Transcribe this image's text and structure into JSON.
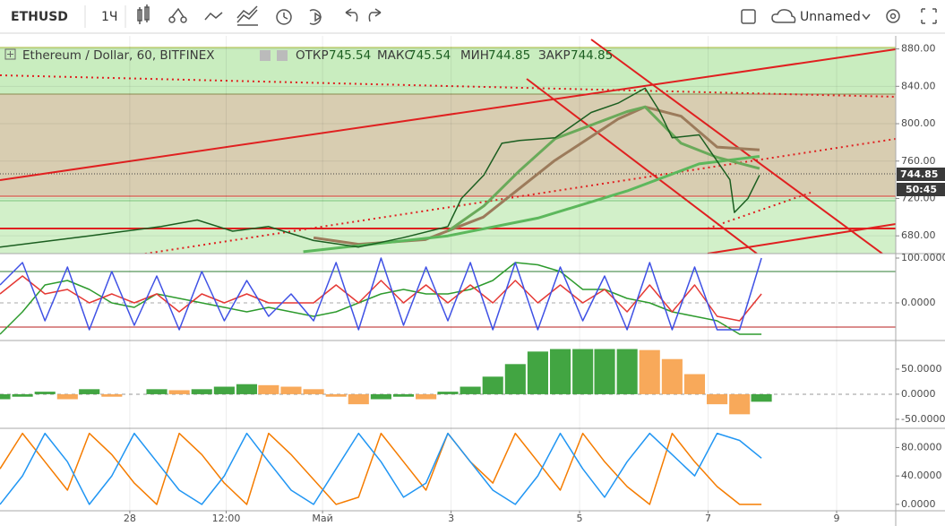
{
  "toolbar": {
    "symbol": "ETHUSD",
    "interval": "1Ч",
    "layout_name": "Unnamed"
  },
  "legend": {
    "title": "Ethereum / Dollar, 60, BITFINEX",
    "items": [
      {
        "label": "ОТКР",
        "value": "745.54"
      },
      {
        "label": "МАКС",
        "value": "745.54"
      },
      {
        "label": "МИН",
        "value": "744.85"
      },
      {
        "label": "ЗАКР",
        "value": "744.85"
      }
    ]
  },
  "price_tag": "744.85",
  "countdown": "50:45",
  "chart_data": [
    {
      "type": "line",
      "grid": true,
      "xlim": [
        25.98,
        39.92
      ],
      "xticks": [
        {
          "value": 28,
          "label": "28"
        },
        {
          "value": 29.5,
          "label": "12:00"
        },
        {
          "value": 31,
          "label": "Май"
        },
        {
          "value": 33,
          "label": "3"
        },
        {
          "value": 35,
          "label": "5"
        },
        {
          "value": 37,
          "label": "7"
        },
        {
          "value": 39,
          "label": "9"
        }
      ],
      "ylim": [
        661,
        894
      ],
      "yticks": [
        {
          "value": 680,
          "label": "680.00"
        },
        {
          "value": 720,
          "label": "720.00"
        },
        {
          "value": 760,
          "label": "760.00"
        },
        {
          "value": 800,
          "label": "800.00"
        },
        {
          "value": 840,
          "label": "840.00"
        },
        {
          "value": 880,
          "label": "880.00"
        }
      ],
      "series": [
        {
          "color": "#9c7b5b",
          "x": [
            30.86,
            31.56,
            32.6,
            33.5,
            34.6,
            35.6,
            36.02,
            36.58,
            37.14,
            37.8
          ],
          "values": [
            678,
            671,
            676,
            700,
            760,
            805,
            818,
            808,
            775,
            772
          ]
        },
        {
          "color": "#5cb85c",
          "x": [
            30.7,
            32.95,
            34.35,
            35.74,
            36.86,
            37.8
          ],
          "values": [
            663,
            680,
            699,
            728,
            757,
            765
          ]
        },
        {
          "color": "#6aaa5a",
          "x": [
            32.95,
            33.51,
            34.07,
            34.62,
            35.74,
            36.02,
            36.58,
            37.14,
            37.8
          ],
          "values": [
            685,
            712,
            750,
            784,
            813,
            818,
            779,
            764,
            752
          ]
        },
        {
          "color": "#1b5e20",
          "x": [
            25.98,
            27.37,
            28.49,
            29.05,
            29.6,
            30.16,
            30.86,
            31.56,
            32.25,
            32.95,
            33.16,
            33.51,
            33.79,
            34.07,
            34.62,
            35.18,
            35.6,
            36.02,
            36.23,
            36.44,
            36.86,
            37.14,
            37.34,
            37.41,
            37.62,
            37.8
          ],
          "values": [
            668,
            680,
            690,
            697,
            685,
            690,
            675,
            668,
            678,
            690,
            720,
            745,
            779,
            782,
            785,
            812,
            822,
            838,
            815,
            785,
            788,
            760,
            740,
            705,
            720,
            745
          ]
        }
      ]
    },
    {
      "type": "line",
      "xlim": [
        25.98,
        39.92
      ],
      "ylim": [
        -84,
        110
      ],
      "yticks": [
        {
          "value": 100,
          "label": "100.0000"
        },
        {
          "value": 0,
          "label": "0.0000"
        }
      ],
      "x": [
        25.98,
        26.33,
        26.68,
        27.03,
        27.37,
        27.72,
        28.07,
        28.42,
        28.77,
        29.12,
        29.47,
        29.82,
        30.16,
        30.51,
        30.86,
        31.21,
        31.56,
        31.91,
        32.26,
        32.61,
        32.95,
        33.3,
        33.65,
        34.0,
        34.35,
        34.7,
        35.05,
        35.39,
        35.74,
        36.09,
        36.44,
        36.79,
        37.14,
        37.49,
        37.83
      ],
      "series": [
        {
          "color": "#2e9b2e",
          "values": [
            -70,
            -20,
            40,
            50,
            30,
            0,
            -10,
            20,
            10,
            0,
            -10,
            -20,
            -10,
            -20,
            -30,
            -20,
            0,
            20,
            30,
            20,
            20,
            30,
            50,
            90,
            85,
            70,
            30,
            30,
            10,
            0,
            -20,
            -30,
            -40,
            -70,
            -70
          ]
        },
        {
          "color": "#e53935",
          "values": [
            20,
            60,
            20,
            30,
            0,
            20,
            0,
            20,
            -20,
            20,
            0,
            20,
            0,
            0,
            0,
            40,
            0,
            50,
            0,
            40,
            0,
            40,
            0,
            50,
            0,
            40,
            0,
            30,
            -20,
            40,
            -20,
            40,
            -30,
            -40,
            20
          ]
        },
        {
          "color": "#3f51e5",
          "values": [
            40,
            90,
            -40,
            80,
            -60,
            70,
            -50,
            60,
            -60,
            70,
            -40,
            50,
            -30,
            20,
            -40,
            90,
            -60,
            100,
            -50,
            80,
            -40,
            90,
            -60,
            90,
            -60,
            80,
            -40,
            60,
            -60,
            90,
            -60,
            80,
            -60,
            -60,
            100
          ]
        }
      ]
    },
    {
      "type": "bar",
      "xlim": [
        25.98,
        39.92
      ],
      "ylim": [
        -68,
        107
      ],
      "yticks": [
        {
          "value": 50,
          "label": "50.0000"
        },
        {
          "value": 0,
          "label": "0.0000"
        },
        {
          "value": -50,
          "label": "-50.0000"
        }
      ],
      "colors": {
        "rising": "#2e9b2e",
        "falling": "#f7a048"
      },
      "x": [
        25.98,
        26.33,
        26.68,
        27.03,
        27.37,
        27.72,
        28.07,
        28.42,
        28.77,
        29.12,
        29.47,
        29.82,
        30.16,
        30.51,
        30.86,
        31.21,
        31.56,
        31.91,
        32.26,
        32.61,
        32.95,
        33.3,
        33.65,
        34.0,
        34.35,
        34.7,
        35.05,
        35.39,
        35.74,
        36.09,
        36.44,
        36.79,
        37.14,
        37.49,
        37.83
      ],
      "values": [
        -10,
        -5,
        5,
        -10,
        10,
        -5,
        0,
        10,
        8,
        10,
        15,
        20,
        18,
        15,
        10,
        -5,
        -20,
        -10,
        -5,
        -10,
        5,
        15,
        35,
        60,
        85,
        90,
        90,
        90,
        90,
        88,
        70,
        40,
        -20,
        -40,
        -15
      ]
    },
    {
      "type": "line",
      "xlim": [
        25.98,
        39.92
      ],
      "ylim": [
        -9,
        107
      ],
      "yticks": [
        {
          "value": 80,
          "label": "80.0000"
        },
        {
          "value": 40,
          "label": "40.0000"
        },
        {
          "value": 0,
          "label": "0.0000"
        }
      ],
      "x": [
        25.98,
        26.33,
        26.68,
        27.03,
        27.37,
        27.72,
        28.07,
        28.42,
        28.77,
        29.12,
        29.47,
        29.82,
        30.16,
        30.51,
        30.86,
        31.21,
        31.56,
        31.91,
        32.26,
        32.61,
        32.95,
        33.3,
        33.65,
        34.0,
        34.35,
        34.7,
        35.05,
        35.39,
        35.74,
        36.09,
        36.44,
        36.79,
        37.14,
        37.49,
        37.83
      ],
      "series": [
        {
          "color": "#f57c00",
          "values": [
            50,
            100,
            60,
            20,
            100,
            70,
            30,
            0,
            100,
            70,
            30,
            0,
            100,
            70,
            35,
            0,
            10,
            100,
            60,
            20,
            100,
            60,
            30,
            100,
            60,
            20,
            100,
            60,
            25,
            0,
            100,
            60,
            25,
            0,
            0
          ]
        },
        {
          "color": "#2196f3",
          "values": [
            0,
            40,
            100,
            60,
            0,
            40,
            100,
            60,
            20,
            0,
            40,
            100,
            60,
            20,
            0,
            50,
            100,
            60,
            10,
            30,
            100,
            60,
            20,
            0,
            40,
            100,
            50,
            10,
            60,
            100,
            70,
            40,
            100,
            90,
            65
          ]
        }
      ]
    }
  ]
}
